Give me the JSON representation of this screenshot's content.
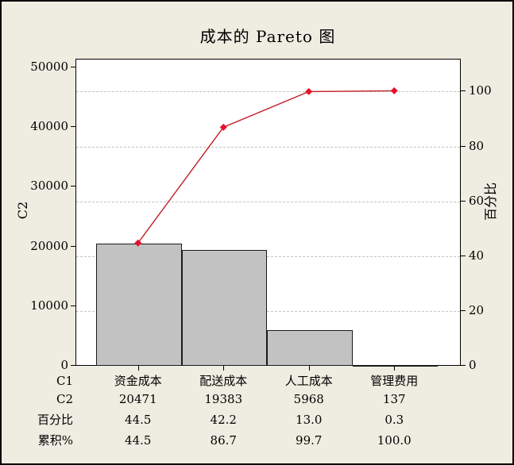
{
  "window": {
    "background": "#efece1",
    "border_color": "#000000"
  },
  "title": "成本的 Pareto 图",
  "axes": {
    "left": {
      "label": "C2",
      "ticks": [
        0,
        10000,
        20000,
        30000,
        40000,
        50000
      ],
      "max": 50000
    },
    "right": {
      "label": "百分比",
      "ticks": [
        0,
        20,
        40,
        60,
        80,
        100
      ],
      "max": 100
    },
    "grid_percents": [
      20,
      40,
      60,
      80,
      100
    ]
  },
  "chart_data": {
    "type": "bar",
    "subtype": "pareto",
    "title": "成本的 Pareto 图",
    "categories": [
      "资金成本",
      "配送成本",
      "人工成本",
      "管理费用"
    ],
    "series": [
      {
        "name": "C2",
        "type": "bar",
        "values": [
          20471,
          19383,
          5968,
          137
        ]
      },
      {
        "name": "百分比",
        "type": "bar-percent",
        "values": [
          44.5,
          42.2,
          13.0,
          0.3
        ]
      },
      {
        "name": "累积%",
        "type": "line",
        "values": [
          44.5,
          86.7,
          99.7,
          100.0
        ]
      }
    ],
    "total": 45959,
    "xlabel": "C1",
    "ylabel": "C2",
    "ylabel_right": "百分比",
    "ylim": [
      0,
      50000
    ],
    "ylim_right": [
      0,
      100
    ],
    "grid": "horizontal dashed lines at right-axis ticks 20/40/60/80/100",
    "legend": "none",
    "colors": {
      "bar_fill": "#c2c2c2",
      "bar_border": "#1a1a1a",
      "line": "#c41e25",
      "marker": "#e8112d",
      "grid": "#c4c4c4",
      "plot_background": "#ffffff"
    }
  },
  "table": {
    "rows": [
      {
        "label": "C1",
        "values": [
          "资金成本",
          "配送成本",
          "人工成本",
          "管理费用"
        ]
      },
      {
        "label": "C2",
        "values": [
          "20471",
          "19383",
          "5968",
          "137"
        ]
      },
      {
        "label": "百分比",
        "values": [
          "44.5",
          "42.2",
          "13.0",
          "0.3"
        ]
      },
      {
        "label": "累积%",
        "values": [
          "44.5",
          "86.7",
          "99.7",
          "100.0"
        ]
      }
    ]
  }
}
